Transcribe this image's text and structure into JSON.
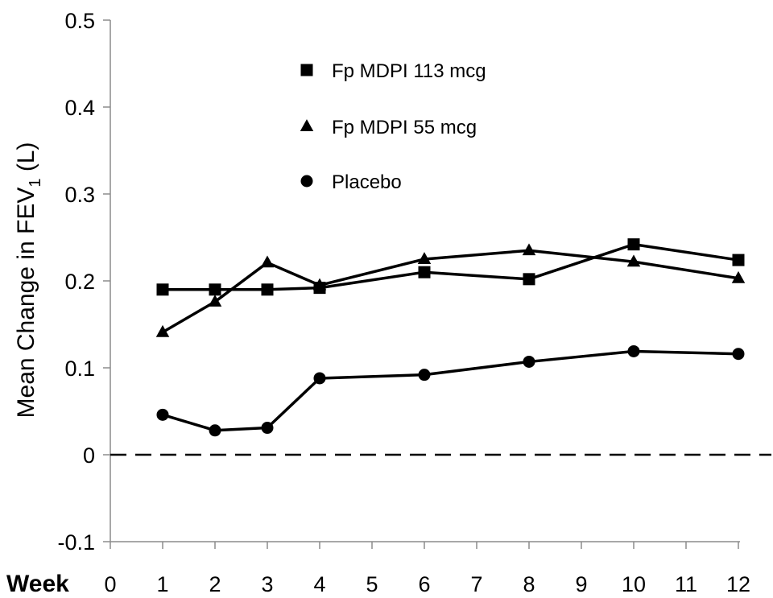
{
  "chart_data": {
    "type": "line",
    "ylabel": "Mean Change in FEV",
    "ylabel_subscript": "1",
    "ylabel_suffix": " (L)",
    "xlabel": "Week",
    "ylim": [
      -0.1,
      0.5
    ],
    "y_ticks": [
      "-0.1",
      "0",
      "0.1",
      "0.2",
      "0.3",
      "0.4",
      "0.5"
    ],
    "y_tick_values": [
      -0.1,
      0,
      0.1,
      0.2,
      0.3,
      0.4,
      0.5
    ],
    "x_ticks": [
      "0",
      "1",
      "2",
      "3",
      "4",
      "5",
      "6",
      "7",
      "8",
      "9",
      "10",
      "11",
      "12"
    ],
    "xlim": [
      0,
      12
    ],
    "reference_line": {
      "y": 0,
      "style": "dashed"
    },
    "grid": false,
    "legend_placement": "top-left",
    "series": [
      {
        "name": "Fp MDPI 113 mcg",
        "marker": "square",
        "x": [
          1,
          2,
          3,
          4,
          6,
          8,
          10,
          12
        ],
        "values": [
          0.19,
          0.19,
          0.19,
          0.192,
          0.21,
          0.202,
          0.242,
          0.224
        ]
      },
      {
        "name": "Fp MDPI 55 mcg",
        "marker": "triangle",
        "x": [
          1,
          2,
          3,
          4,
          6,
          8,
          10,
          12
        ],
        "values": [
          0.141,
          0.176,
          0.221,
          0.195,
          0.225,
          0.235,
          0.222,
          0.203
        ]
      },
      {
        "name": "Placebo",
        "marker": "circle",
        "x": [
          1,
          2,
          3,
          4,
          6,
          8,
          10,
          12
        ],
        "values": [
          0.046,
          0.028,
          0.031,
          0.088,
          0.092,
          0.107,
          0.119,
          0.116
        ]
      }
    ]
  }
}
